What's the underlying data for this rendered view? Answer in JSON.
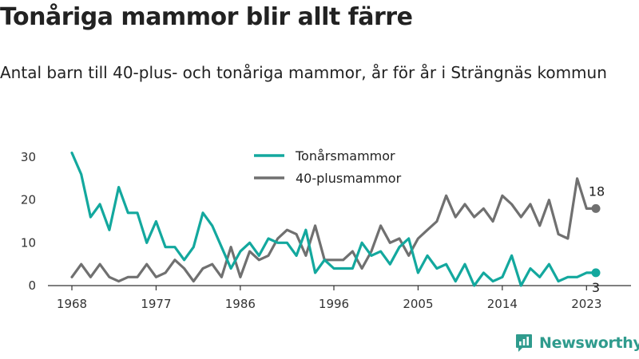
{
  "header": {
    "title": "Tonåriga mammor blir allt färre",
    "subtitle": "Antal barn till 40-plus- och tonåriga mammor, år för år i Strängnäs kommun"
  },
  "brand": {
    "name": "Newsworthy",
    "icon": "newsworthy-logo-icon",
    "color": "#2f9b8d"
  },
  "colors": {
    "teen": "#13a89e",
    "forty": "#707070",
    "axis": "#333333"
  },
  "chart_data": {
    "type": "line",
    "title": "Tonåriga mammor blir allt färre",
    "subtitle": "Antal barn till 40-plus- och tonåriga mammor, år för år i Strängnäs kommun",
    "x": [
      1968,
      1969,
      1970,
      1971,
      1972,
      1973,
      1974,
      1975,
      1976,
      1977,
      1978,
      1979,
      1980,
      1981,
      1982,
      1983,
      1984,
      1985,
      1986,
      1987,
      1988,
      1989,
      1990,
      1991,
      1992,
      1993,
      1994,
      1995,
      1996,
      1997,
      1998,
      1999,
      2000,
      2001,
      2002,
      2003,
      2004,
      2005,
      2006,
      2007,
      2008,
      2009,
      2010,
      2011,
      2012,
      2013,
      2014,
      2015,
      2016,
      2017,
      2018,
      2019,
      2020,
      2021,
      2022,
      2023,
      2024
    ],
    "xticks": [
      1968,
      1977,
      1986,
      1996,
      2005,
      2014,
      2023
    ],
    "ylim": [
      0,
      32
    ],
    "yticks": [
      0,
      10,
      20,
      30
    ],
    "xlabel": "",
    "ylabel": "",
    "grid": false,
    "legend_position": "top-center",
    "series": [
      {
        "name": "Tonårsmammor",
        "color": "#13a89e",
        "values": [
          31,
          26,
          16,
          19,
          13,
          23,
          17,
          17,
          10,
          15,
          9,
          9,
          6,
          9,
          17,
          14,
          9,
          4,
          8,
          10,
          7,
          11,
          10,
          10,
          7,
          13,
          3,
          6,
          4,
          4,
          4,
          10,
          7,
          8,
          5,
          9,
          11,
          3,
          7,
          4,
          5,
          1,
          5,
          0,
          3,
          1,
          2,
          7,
          0,
          4,
          2,
          5,
          1,
          2,
          2,
          3,
          3
        ],
        "end_label": "3"
      },
      {
        "name": "40-plusmammor",
        "color": "#707070",
        "values": [
          2,
          5,
          2,
          5,
          2,
          1,
          2,
          2,
          5,
          2,
          3,
          6,
          4,
          1,
          4,
          5,
          2,
          9,
          2,
          8,
          6,
          7,
          11,
          13,
          12,
          7,
          14,
          6,
          6,
          6,
          8,
          4,
          8,
          14,
          10,
          11,
          7,
          11,
          13,
          15,
          21,
          16,
          19,
          16,
          18,
          15,
          21,
          19,
          16,
          19,
          14,
          20,
          12,
          11,
          25,
          18,
          18
        ],
        "end_label": "18"
      }
    ]
  }
}
